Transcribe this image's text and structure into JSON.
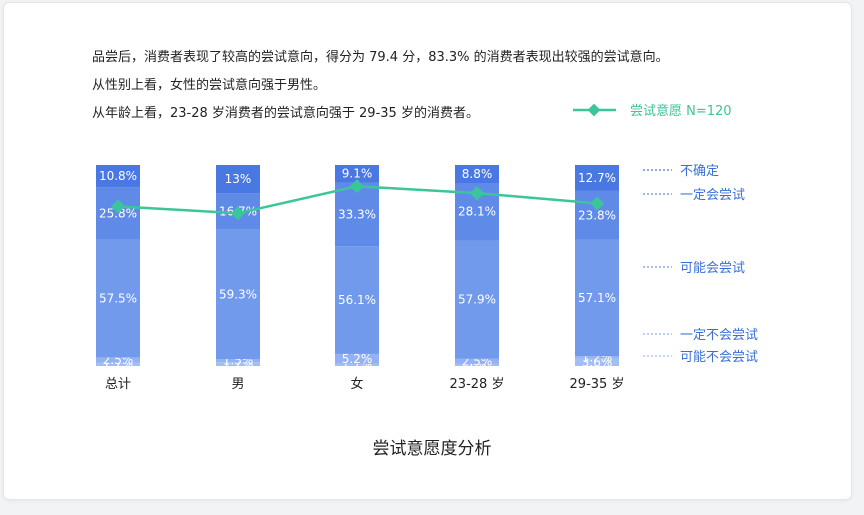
{
  "description": [
    "品尝后，消费者表现了较高的尝试意向，得分为 79.4 分，83.3% 的消费者表现出较强的尝试意向。",
    "从性别上看，女性的尝试意向强于男性。",
    "从年龄上看，23-28 岁消费者的尝试意向强于 29-35 岁的消费者。"
  ],
  "chart_data": {
    "type": "bar",
    "stacked": true,
    "title": "尝试意愿度分析",
    "categories": [
      "总计",
      "男",
      "女",
      "23-28 岁",
      "29-35 岁"
    ],
    "series": [
      {
        "name": "可能不会尝试",
        "values": [
          1.7,
          1.7,
          1.1,
          1,
          3.6
        ],
        "labels": [
          "1.7%",
          "1.7%",
          "1.1%",
          "1%",
          "3.6%"
        ],
        "color": "#a3bef5"
      },
      {
        "name": "一定不会尝试",
        "values": [
          2.5,
          1.5,
          5.2,
          2.5,
          1.2
        ],
        "labels": [
          "2.5%",
          "1.5%",
          "5.2%",
          "2.5%",
          "1.2%"
        ],
        "color": "#94b2f3"
      },
      {
        "name": "可能会尝试",
        "values": [
          57.5,
          59.3,
          56.1,
          57.9,
          57.1
        ],
        "labels": [
          "57.5%",
          "59.3%",
          "56.1%",
          "57.9%",
          "57.1%"
        ],
        "color": "#7199ec"
      },
      {
        "name": "一定会尝试",
        "values": [
          25.8,
          16.7,
          33.3,
          28.1,
          23.8
        ],
        "labels": [
          "25.8%",
          "16.7%",
          "33.3%",
          "28.1%",
          "23.8%"
        ],
        "color": "#5f8ae8"
      },
      {
        "name": "不确定",
        "values": [
          10.8,
          13,
          9.1,
          8.8,
          12.7
        ],
        "labels": [
          "10.8%",
          "13%",
          "9.1%",
          "8.8%",
          "12.7%"
        ],
        "color": "#4a78e2"
      }
    ],
    "line": {
      "name": "尝试意愿 N=120",
      "values": [
        79.4,
        76,
        89.4,
        86,
        80.9
      ],
      "color": "#3cc49a"
    },
    "ylim": [
      0,
      100
    ],
    "legend_label_color": "#3a6fd8"
  }
}
